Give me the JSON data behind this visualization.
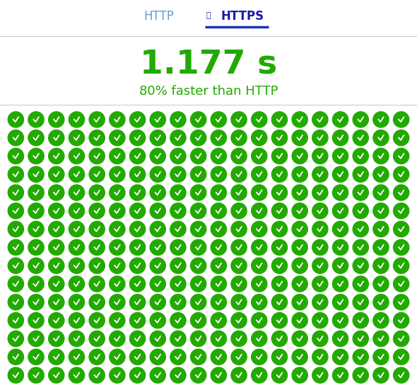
{
  "title_http": "HTTP",
  "title_https": "HTTPS",
  "main_value": "1.177 s",
  "subtitle": "80% faster than HTTP",
  "background_color": "#ffffff",
  "header_line_color": "#2233bb",
  "http_color": "#6699cc",
  "https_color": "#1a1aaa",
  "value_color": "#22aa00",
  "subtitle_color": "#22aa00",
  "circle_color": "#22aa00",
  "check_color": "#ffffff",
  "n_cols": 20,
  "n_rows": 15,
  "value_fontsize": 34,
  "subtitle_fontsize": 13,
  "tab_fontsize": 12
}
